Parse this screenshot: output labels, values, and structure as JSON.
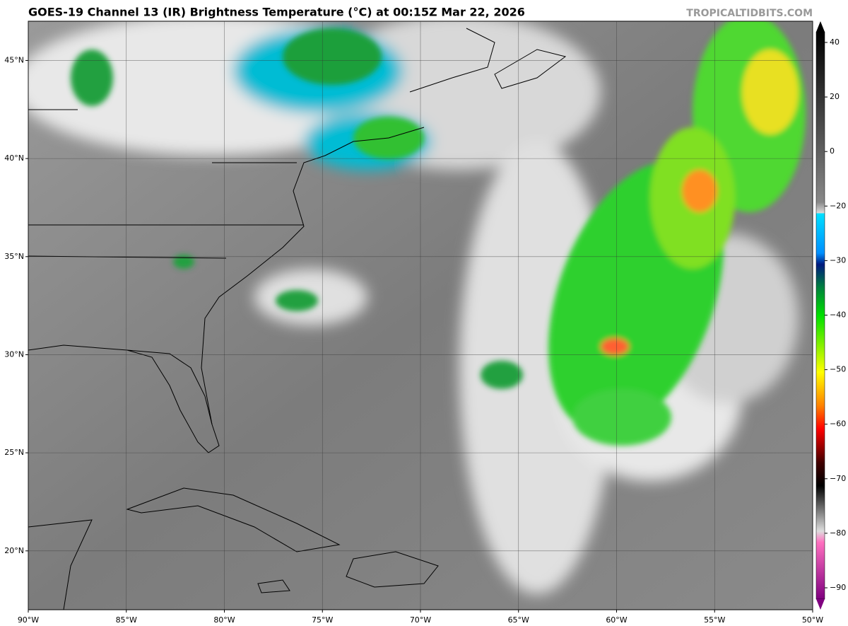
{
  "map": {
    "title": "GOES-19 Channel 13 (IR) Brightness Temperature (°C) at 00:15Z Mar 22, 2026",
    "credit": "TROPICALTIDBITS.COM",
    "lon_range": [
      -90,
      -50
    ],
    "lat_range": [
      17,
      47
    ],
    "lon_ticks": [
      {
        "value": -90,
        "label": "90°W"
      },
      {
        "value": -85,
        "label": "85°W"
      },
      {
        "value": -80,
        "label": "80°W"
      },
      {
        "value": -75,
        "label": "75°W"
      },
      {
        "value": -70,
        "label": "70°W"
      },
      {
        "value": -65,
        "label": "65°W"
      },
      {
        "value": -60,
        "label": "60°W"
      },
      {
        "value": -55,
        "label": "55°W"
      },
      {
        "value": -50,
        "label": "50°W"
      }
    ],
    "lat_ticks": [
      {
        "value": 45,
        "label": "45°N"
      },
      {
        "value": 40,
        "label": "40°N"
      },
      {
        "value": 35,
        "label": "35°N"
      },
      {
        "value": 30,
        "label": "30°N"
      },
      {
        "value": 25,
        "label": "25°N"
      },
      {
        "value": 20,
        "label": "20°N"
      }
    ],
    "colorbar_ticks": [
      40,
      20,
      0,
      {
        "value": -20,
        "label": "−20"
      },
      {
        "value": -30,
        "label": "−30"
      },
      {
        "value": -40,
        "label": "−40"
      },
      {
        "value": -50,
        "label": "−50"
      },
      {
        "value": -60,
        "label": "−60"
      },
      {
        "value": -70,
        "label": "−70"
      },
      {
        "value": -80,
        "label": "−80"
      },
      {
        "value": -90,
        "label": "−90"
      }
    ]
  }
}
